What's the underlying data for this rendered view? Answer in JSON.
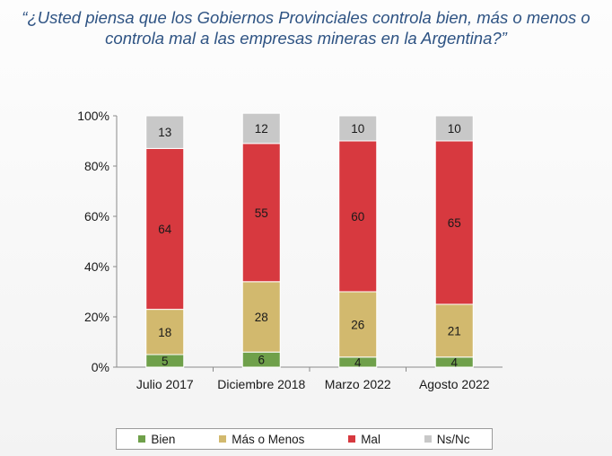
{
  "title": {
    "line1": "“¿Usted piensa que los Gobiernos Provinciales controla bien, más o menos o",
    "line2": "controla mal a las empresas mineras en la Argentina?”"
  },
  "chart_data": {
    "type": "bar",
    "stacked": true,
    "categories": [
      "Julio 2017",
      "Diciembre 2018",
      "Marzo 2022",
      "Agosto 2022"
    ],
    "series": [
      {
        "name": "Bien",
        "color": "#6fa04a",
        "values": [
          5,
          6,
          4,
          4
        ]
      },
      {
        "name": "Más o Menos",
        "color": "#d2b96e",
        "values": [
          18,
          28,
          26,
          21
        ]
      },
      {
        "name": "Mal",
        "color": "#d7393f",
        "values": [
          64,
          55,
          60,
          65
        ]
      },
      {
        "name": "Ns/Nc",
        "color": "#c8c8c8",
        "values": [
          13,
          12,
          10,
          10
        ]
      }
    ],
    "yticks": [
      "0%",
      "20%",
      "40%",
      "60%",
      "80%",
      "100%"
    ],
    "ylim": [
      0,
      100
    ],
    "legend_position": "bottom"
  },
  "legend": {
    "items": [
      {
        "label": "Bien",
        "color": "#6fa04a"
      },
      {
        "label": "Más o Menos",
        "color": "#d2b96e"
      },
      {
        "label": "Mal",
        "color": "#d7393f"
      },
      {
        "label": "Ns/Nc",
        "color": "#c8c8c8"
      }
    ]
  }
}
